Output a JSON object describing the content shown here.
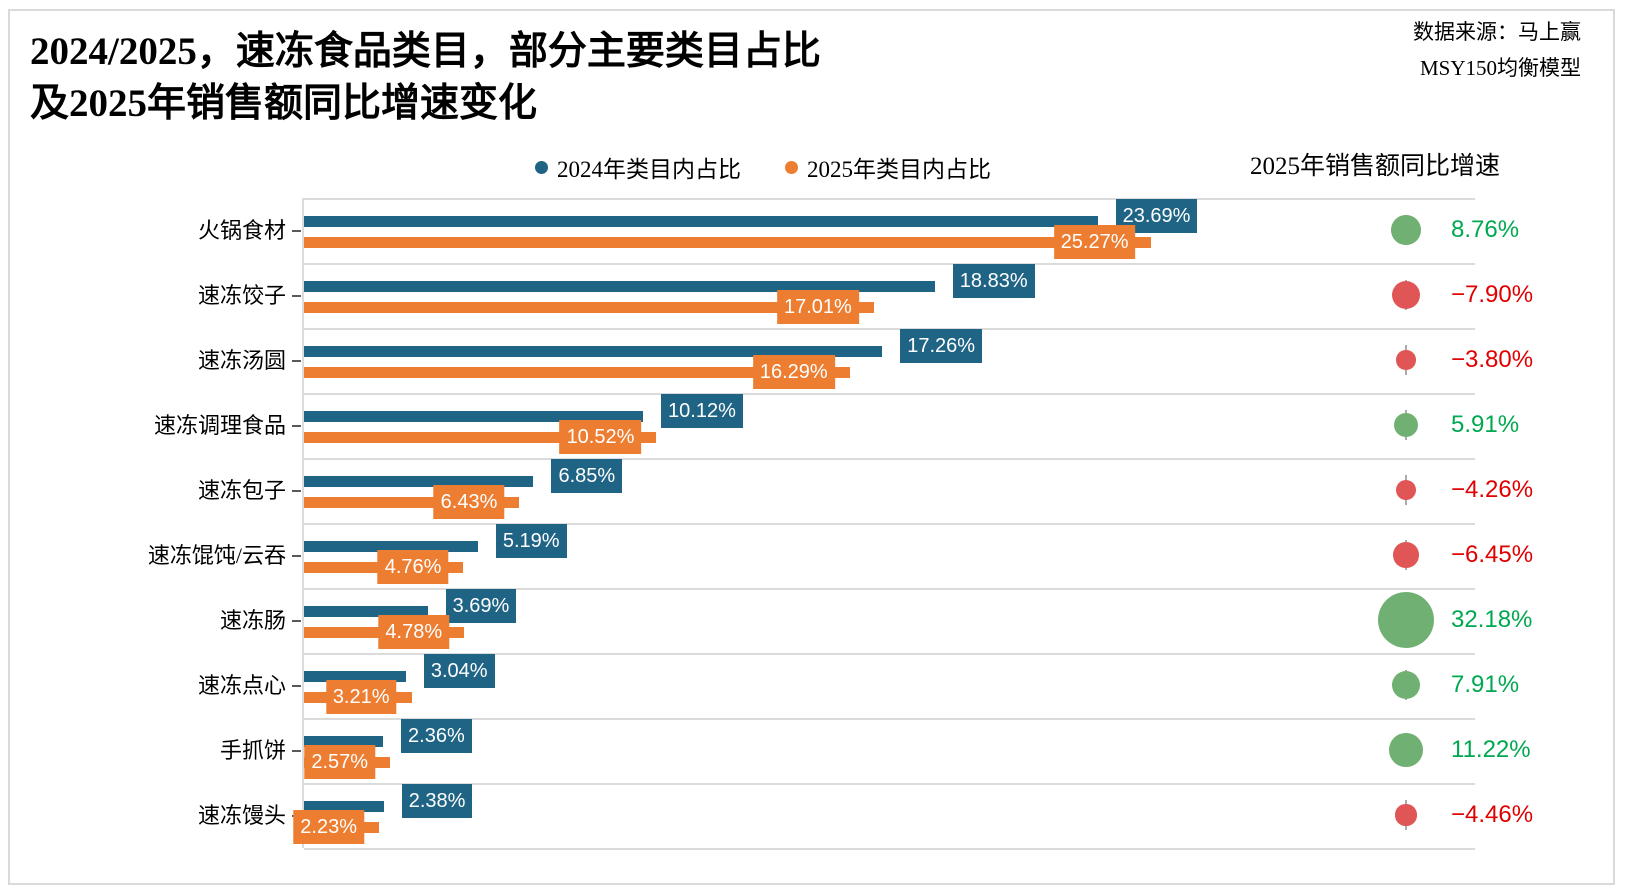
{
  "header": {
    "title_line1": "2024/2025，速冻食品类目，部分主要类目占比",
    "title_line2": "及2025年销售额同比增速变化",
    "source_line1": "数据来源：马上赢",
    "source_line2": "MSY150均衡模型"
  },
  "colors": {
    "bar_2024": "#1F6485",
    "bar_2025": "#ED7D31",
    "growth_pos_circle": "#70B173",
    "growth_neg_circle": "#E05656",
    "growth_pos_text": "#00A850",
    "growth_neg_text": "#E00000",
    "grid": "#DBDBDB"
  },
  "chart_data": {
    "type": "bar",
    "orientation": "horizontal",
    "title": "2024/2025，速冻食品类目，部分主要类目占比及2025年销售额同比增速变化",
    "categories": [
      "火锅食材",
      "速冻饺子",
      "速冻汤圆",
      "速冻调理食品",
      "速冻包子",
      "速冻馄饨/云吞",
      "速冻肠",
      "速冻点心",
      "手抓饼",
      "速冻馒头"
    ],
    "series": [
      {
        "name": "2024年类目内占比",
        "values": [
          23.69,
          18.83,
          17.26,
          10.12,
          6.85,
          5.19,
          3.69,
          3.04,
          2.36,
          2.38
        ],
        "labels": [
          "23.69%",
          "18.83%",
          "17.26%",
          "10.12%",
          "6.85%",
          "5.19%",
          "3.69%",
          "3.04%",
          "2.36%",
          "2.38%"
        ]
      },
      {
        "name": "2025年类目内占比",
        "values": [
          25.27,
          17.01,
          16.29,
          10.52,
          6.43,
          4.76,
          4.78,
          3.21,
          2.57,
          2.23
        ],
        "labels": [
          "25.27%",
          "17.01%",
          "16.29%",
          "10.52%",
          "6.43%",
          "4.76%",
          "4.78%",
          "3.21%",
          "2.57%",
          "2.23%"
        ]
      }
    ],
    "growth": {
      "header": "2025年销售额同比增速",
      "values": [
        8.76,
        -7.9,
        -3.8,
        5.91,
        -4.26,
        -6.45,
        32.18,
        7.91,
        11.22,
        -4.46
      ],
      "labels": [
        "8.76%",
        "−7.90%",
        "−3.80%",
        "5.91%",
        "−4.26%",
        "−6.45%",
        "32.18%",
        "7.91%",
        "11.22%",
        "−4.46%"
      ]
    },
    "xlim": [
      0,
      35
    ],
    "grid": "row-separators",
    "legend_position": "top-center"
  }
}
